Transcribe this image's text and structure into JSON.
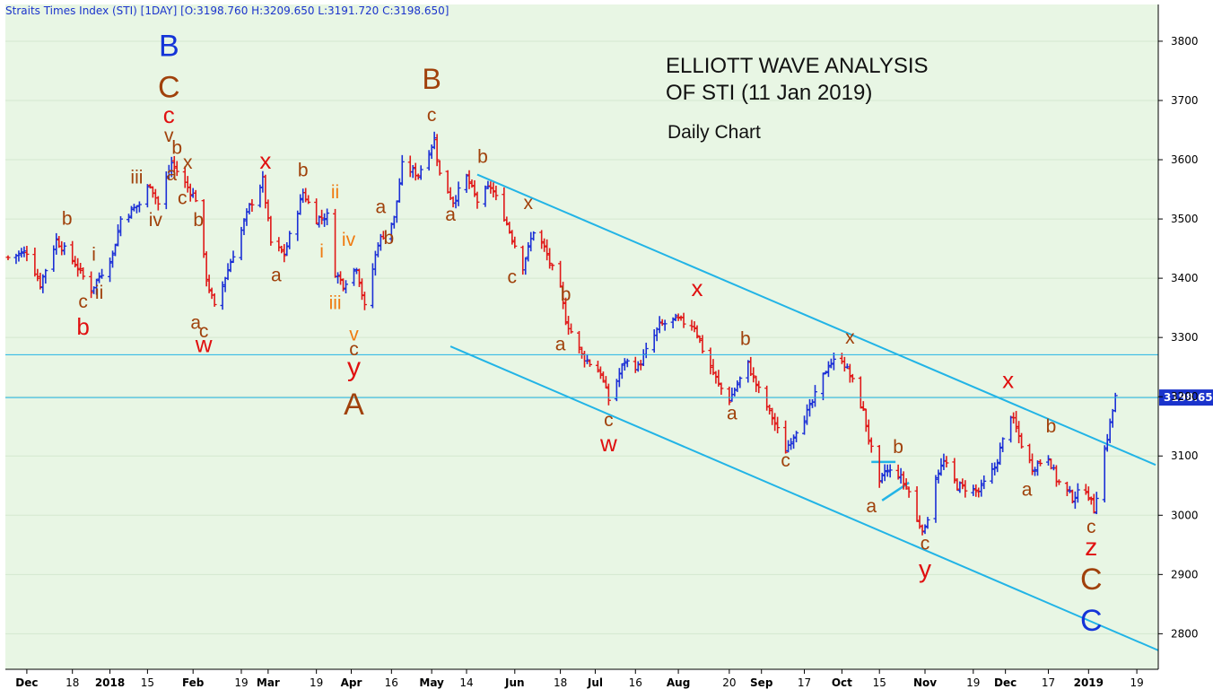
{
  "header": {
    "text": "Straits Times Index (STI) [1DAY] [O:3198.760 H:3209.650 L:3191.720 C:3198.650]"
  },
  "title": {
    "line1": "ELLIOTT WAVE ANALYSIS",
    "line2": "OF STI (11 Jan 2019)",
    "subtitle": "Daily Chart"
  },
  "colors": {
    "background": "#e8f6e4",
    "up": "#1b2fd6",
    "down": "#e01818",
    "channel": "#22b4e6",
    "wave_brown": "#a0410b",
    "wave_red": "#e01010",
    "wave_blue": "#1434d8",
    "wave_orange": "#f07a10"
  },
  "chart_data": {
    "type": "ohlc",
    "yaxis": {
      "ticks": [
        2800,
        2900,
        3000,
        3100,
        3200,
        3300,
        3400,
        3500,
        3600,
        3700,
        3800
      ],
      "range": [
        2740,
        3862
      ],
      "position": "right"
    },
    "last_price_label": "3198.65",
    "xaxis": {
      "range": [
        "2017-11-23",
        "2019-01-27"
      ],
      "ticks": [
        {
          "date": "2017-12-01",
          "label": "Dec"
        },
        {
          "date": "2017-12-18",
          "label": "18"
        },
        {
          "date": "2018-01-01",
          "label": "2018"
        },
        {
          "date": "2018-01-15",
          "label": "15"
        },
        {
          "date": "2018-02-01",
          "label": "Feb"
        },
        {
          "date": "2018-02-19",
          "label": "19"
        },
        {
          "date": "2018-03-01",
          "label": "Mar"
        },
        {
          "date": "2018-03-19",
          "label": "19"
        },
        {
          "date": "2018-04-01",
          "label": "Apr"
        },
        {
          "date": "2018-04-16",
          "label": "16"
        },
        {
          "date": "2018-05-01",
          "label": "May"
        },
        {
          "date": "2018-05-14",
          "label": "14"
        },
        {
          "date": "2018-06-01",
          "label": "Jun"
        },
        {
          "date": "2018-06-18",
          "label": "18"
        },
        {
          "date": "2018-07-01",
          "label": "Jul"
        },
        {
          "date": "2018-07-16",
          "label": "16"
        },
        {
          "date": "2018-08-01",
          "label": "Aug"
        },
        {
          "date": "2018-08-20",
          "label": "20"
        },
        {
          "date": "2018-09-01",
          "label": "Sep"
        },
        {
          "date": "2018-09-17",
          "label": "17"
        },
        {
          "date": "2018-10-01",
          "label": "Oct"
        },
        {
          "date": "2018-10-15",
          "label": "15"
        },
        {
          "date": "2018-11-01",
          "label": "Nov"
        },
        {
          "date": "2018-11-19",
          "label": "19"
        },
        {
          "date": "2018-12-01",
          "label": "Dec"
        },
        {
          "date": "2018-12-17",
          "label": "17"
        },
        {
          "date": "2019-01-01",
          "label": "2019"
        },
        {
          "date": "2019-01-19",
          "label": "19"
        }
      ]
    },
    "hlines": [
      3271,
      3198.65
    ],
    "price_path": [
      [
        "2017-11-24",
        3435
      ],
      [
        "2017-12-01",
        3445
      ],
      [
        "2017-12-06",
        3390
      ],
      [
        "2017-12-12",
        3465
      ],
      [
        "2017-12-19",
        3425
      ],
      [
        "2017-12-25",
        3380
      ],
      [
        "2018-01-02",
        3440
      ],
      [
        "2018-01-05",
        3500
      ],
      [
        "2018-01-12",
        3525
      ],
      [
        "2018-01-16",
        3560
      ],
      [
        "2018-01-19",
        3525
      ],
      [
        "2018-01-24",
        3595
      ],
      [
        "2018-01-29",
        3560
      ],
      [
        "2018-02-02",
        3535
      ],
      [
        "2018-02-06",
        3400
      ],
      [
        "2018-02-09",
        3350
      ],
      [
        "2018-02-14",
        3415
      ],
      [
        "2018-02-22",
        3520
      ],
      [
        "2018-02-27",
        3565
      ],
      [
        "2018-03-02",
        3460
      ],
      [
        "2018-03-07",
        3440
      ],
      [
        "2018-03-14",
        3545
      ],
      [
        "2018-03-19",
        3500
      ],
      [
        "2018-03-23",
        3505
      ],
      [
        "2018-03-26",
        3410
      ],
      [
        "2018-03-29",
        3390
      ],
      [
        "2018-04-03",
        3420
      ],
      [
        "2018-04-06",
        3350
      ],
      [
        "2018-04-11",
        3460
      ],
      [
        "2018-04-17",
        3500
      ],
      [
        "2018-04-20",
        3590
      ],
      [
        "2018-04-26",
        3575
      ],
      [
        "2018-05-02",
        3635
      ],
      [
        "2018-05-04",
        3575
      ],
      [
        "2018-05-09",
        3530
      ],
      [
        "2018-05-14",
        3570
      ],
      [
        "2018-05-18",
        3530
      ],
      [
        "2018-05-23",
        3555
      ],
      [
        "2018-05-28",
        3505
      ],
      [
        "2018-06-04",
        3420
      ],
      [
        "2018-06-08",
        3480
      ],
      [
        "2018-06-12",
        3450
      ],
      [
        "2018-06-18",
        3380
      ],
      [
        "2018-06-20",
        3330
      ],
      [
        "2018-06-26",
        3270
      ],
      [
        "2018-07-03",
        3240
      ],
      [
        "2018-07-06",
        3195
      ],
      [
        "2018-07-12",
        3260
      ],
      [
        "2018-07-17",
        3250
      ],
      [
        "2018-07-25",
        3320
      ],
      [
        "2018-07-31",
        3330
      ],
      [
        "2018-08-07",
        3320
      ],
      [
        "2018-08-10",
        3280
      ],
      [
        "2018-08-16",
        3220
      ],
      [
        "2018-08-20",
        3195
      ],
      [
        "2018-08-27",
        3255
      ],
      [
        "2018-08-30",
        3220
      ],
      [
        "2018-09-05",
        3165
      ],
      [
        "2018-09-10",
        3110
      ],
      [
        "2018-09-14",
        3145
      ],
      [
        "2018-09-19",
        3180
      ],
      [
        "2018-09-26",
        3255
      ],
      [
        "2018-10-01",
        3265
      ],
      [
        "2018-10-05",
        3225
      ],
      [
        "2018-10-09",
        3175
      ],
      [
        "2018-10-11",
        3130
      ],
      [
        "2018-10-15",
        3050
      ],
      [
        "2018-10-17",
        3075
      ],
      [
        "2018-10-22",
        3070
      ],
      [
        "2018-10-26",
        3040
      ],
      [
        "2018-10-29",
        2990
      ],
      [
        "2018-11-01",
        2975
      ],
      [
        "2018-11-05",
        3065
      ],
      [
        "2018-11-08",
        3090
      ],
      [
        "2018-11-13",
        3050
      ],
      [
        "2018-11-21",
        3040
      ],
      [
        "2018-11-27",
        3080
      ],
      [
        "2018-12-03",
        3170
      ],
      [
        "2018-12-07",
        3120
      ],
      [
        "2018-12-11",
        3080
      ],
      [
        "2018-12-17",
        3100
      ],
      [
        "2018-12-20",
        3060
      ],
      [
        "2018-12-26",
        3030
      ],
      [
        "2018-12-31",
        3045
      ],
      [
        "2019-01-03",
        3010
      ],
      [
        "2019-01-07",
        3110
      ],
      [
        "2019-01-11",
        3199
      ]
    ],
    "channel_lines": [
      {
        "from": [
          "2018-05-18",
          3575
        ],
        "to": [
          "2019-01-26",
          3085
        ]
      },
      {
        "from": [
          "2018-05-08",
          3285
        ],
        "to": [
          "2019-01-27",
          2772
        ]
      }
    ],
    "small_lines": [
      {
        "from": [
          "2018-10-12",
          3090
        ],
        "to": [
          "2018-10-21",
          3090
        ]
      },
      {
        "from": [
          "2018-10-16",
          3025
        ],
        "to": [
          "2018-10-26",
          3055
        ]
      }
    ],
    "wave_labels": [
      {
        "text": "B",
        "date": "2018-01-23",
        "price": 3775,
        "size": 34,
        "color": "wave_blue"
      },
      {
        "text": "C",
        "date": "2018-01-23",
        "price": 3705,
        "size": 34,
        "color": "wave_brown"
      },
      {
        "text": "c",
        "date": "2018-01-23",
        "price": 3662,
        "size": 26,
        "color": "wave_red"
      },
      {
        "text": "v",
        "date": "2018-01-23",
        "price": 3630,
        "size": 21,
        "color": "wave_brown"
      },
      {
        "text": "b",
        "date": "2018-01-26",
        "price": 3610,
        "size": 21,
        "color": "wave_brown"
      },
      {
        "text": "x",
        "date": "2018-01-30",
        "price": 3585,
        "size": 21,
        "color": "wave_brown"
      },
      {
        "text": "a",
        "date": "2018-01-24",
        "price": 3565,
        "size": 21,
        "color": "wave_brown"
      },
      {
        "text": "c",
        "date": "2018-01-28",
        "price": 3525,
        "size": 21,
        "color": "wave_brown"
      },
      {
        "text": "iii",
        "date": "2018-01-11",
        "price": 3560,
        "size": 21,
        "color": "wave_brown"
      },
      {
        "text": "iv",
        "date": "2018-01-18",
        "price": 3488,
        "size": 21,
        "color": "wave_brown"
      },
      {
        "text": "b",
        "date": "2018-02-03",
        "price": 3488,
        "size": 21,
        "color": "wave_brown"
      },
      {
        "text": "b",
        "date": "2017-12-16",
        "price": 3490,
        "size": 21,
        "color": "wave_brown"
      },
      {
        "text": "i",
        "date": "2017-12-26",
        "price": 3430,
        "size": 21,
        "color": "wave_brown"
      },
      {
        "text": "c",
        "date": "2017-12-22",
        "price": 3350,
        "size": 21,
        "color": "wave_brown"
      },
      {
        "text": "ii",
        "date": "2017-12-28",
        "price": 3365,
        "size": 21,
        "color": "wave_brown"
      },
      {
        "text": "b",
        "date": "2017-12-22",
        "price": 3305,
        "size": 26,
        "color": "wave_red"
      },
      {
        "text": "a",
        "date": "2018-02-02",
        "price": 3315,
        "size": 21,
        "color": "wave_brown"
      },
      {
        "text": "c",
        "date": "2018-02-05",
        "price": 3300,
        "size": 21,
        "color": "wave_brown"
      },
      {
        "text": "w",
        "date": "2018-02-05",
        "price": 3275,
        "size": 26,
        "color": "wave_red"
      },
      {
        "text": "x",
        "date": "2018-02-28",
        "price": 3585,
        "size": 26,
        "color": "wave_red"
      },
      {
        "text": "a",
        "date": "2018-03-04",
        "price": 3395,
        "size": 21,
        "color": "wave_brown"
      },
      {
        "text": "b",
        "date": "2018-03-14",
        "price": 3572,
        "size": 21,
        "color": "wave_brown"
      },
      {
        "text": "ii",
        "date": "2018-03-26",
        "price": 3535,
        "size": 21,
        "color": "wave_orange"
      },
      {
        "text": "i",
        "date": "2018-03-21",
        "price": 3435,
        "size": 21,
        "color": "wave_orange"
      },
      {
        "text": "iv",
        "date": "2018-03-31",
        "price": 3455,
        "size": 21,
        "color": "wave_orange"
      },
      {
        "text": "iii",
        "date": "2018-03-26",
        "price": 3348,
        "size": 21,
        "color": "wave_orange"
      },
      {
        "text": "v",
        "date": "2018-04-02",
        "price": 3295,
        "size": 21,
        "color": "wave_orange"
      },
      {
        "text": "c",
        "date": "2018-04-02",
        "price": 3270,
        "size": 21,
        "color": "wave_brown"
      },
      {
        "text": "y",
        "date": "2018-04-02",
        "price": 3235,
        "size": 30,
        "color": "wave_red"
      },
      {
        "text": "A",
        "date": "2018-04-02",
        "price": 3170,
        "size": 34,
        "color": "wave_brown"
      },
      {
        "text": "a",
        "date": "2018-04-12",
        "price": 3510,
        "size": 21,
        "color": "wave_brown"
      },
      {
        "text": "b",
        "date": "2018-04-15",
        "price": 3458,
        "size": 21,
        "color": "wave_brown"
      },
      {
        "text": "B",
        "date": "2018-05-01",
        "price": 3720,
        "size": 32,
        "color": "wave_brown"
      },
      {
        "text": "c",
        "date": "2018-05-01",
        "price": 3665,
        "size": 21,
        "color": "wave_brown"
      },
      {
        "text": "a",
        "date": "2018-05-08",
        "price": 3497,
        "size": 21,
        "color": "wave_brown"
      },
      {
        "text": "b",
        "date": "2018-05-20",
        "price": 3595,
        "size": 21,
        "color": "wave_brown"
      },
      {
        "text": "x",
        "date": "2018-06-06",
        "price": 3517,
        "size": 21,
        "color": "wave_brown"
      },
      {
        "text": "c",
        "date": "2018-05-31",
        "price": 3392,
        "size": 21,
        "color": "wave_brown"
      },
      {
        "text": "b",
        "date": "2018-06-20",
        "price": 3362,
        "size": 21,
        "color": "wave_brown"
      },
      {
        "text": "a",
        "date": "2018-06-18",
        "price": 3278,
        "size": 21,
        "color": "wave_brown"
      },
      {
        "text": "c",
        "date": "2018-07-06",
        "price": 3150,
        "size": 21,
        "color": "wave_brown"
      },
      {
        "text": "w",
        "date": "2018-07-06",
        "price": 3108,
        "size": 26,
        "color": "wave_red"
      },
      {
        "text": "x",
        "date": "2018-08-08",
        "price": 3370,
        "size": 26,
        "color": "wave_red"
      },
      {
        "text": "b",
        "date": "2018-08-26",
        "price": 3287,
        "size": 21,
        "color": "wave_brown"
      },
      {
        "text": "a",
        "date": "2018-08-21",
        "price": 3162,
        "size": 21,
        "color": "wave_brown"
      },
      {
        "text": "c",
        "date": "2018-09-10",
        "price": 3082,
        "size": 21,
        "color": "wave_brown"
      },
      {
        "text": "x",
        "date": "2018-10-04",
        "price": 3290,
        "size": 21,
        "color": "wave_brown"
      },
      {
        "text": "b",
        "date": "2018-10-22",
        "price": 3105,
        "size": 21,
        "color": "wave_brown"
      },
      {
        "text": "a",
        "date": "2018-10-12",
        "price": 3005,
        "size": 21,
        "color": "wave_brown"
      },
      {
        "text": "c",
        "date": "2018-11-01",
        "price": 2942,
        "size": 21,
        "color": "wave_brown"
      },
      {
        "text": "y",
        "date": "2018-11-01",
        "price": 2895,
        "size": 28,
        "color": "wave_red"
      },
      {
        "text": "x",
        "date": "2018-12-02",
        "price": 3215,
        "size": 26,
        "color": "wave_red"
      },
      {
        "text": "b",
        "date": "2018-12-18",
        "price": 3140,
        "size": 21,
        "color": "wave_brown"
      },
      {
        "text": "a",
        "date": "2018-12-09",
        "price": 3033,
        "size": 21,
        "color": "wave_brown"
      },
      {
        "text": "c",
        "date": "2019-01-02",
        "price": 2970,
        "size": 21,
        "color": "wave_brown"
      },
      {
        "text": "z",
        "date": "2019-01-02",
        "price": 2932,
        "size": 28,
        "color": "wave_red"
      },
      {
        "text": "C",
        "date": "2019-01-02",
        "price": 2875,
        "size": 34,
        "color": "wave_brown"
      },
      {
        "text": "C",
        "date": "2019-01-02",
        "price": 2805,
        "size": 34,
        "color": "wave_blue"
      }
    ]
  }
}
